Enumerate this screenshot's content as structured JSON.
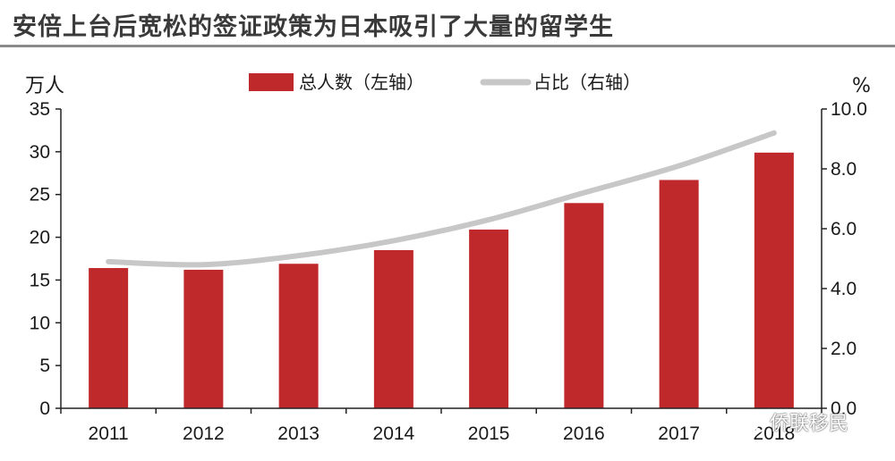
{
  "title": "安倍上台后宽松的签证政策为日本吸引了大量的留学生",
  "watermark": "侨联移民",
  "chart_data": {
    "type": "bar",
    "categories": [
      "2011",
      "2012",
      "2013",
      "2014",
      "2015",
      "2016",
      "2017",
      "2018"
    ],
    "series": [
      {
        "name": "总人数（左轴）",
        "type": "bar",
        "axis": "left",
        "color": "#c0292b",
        "values": [
          16.4,
          16.2,
          16.9,
          18.5,
          20.9,
          24.0,
          26.7,
          29.9
        ]
      },
      {
        "name": "占比（右轴）",
        "type": "line",
        "axis": "right",
        "color": "#c7c7c7",
        "values": [
          4.9,
          4.8,
          5.1,
          5.6,
          6.3,
          7.2,
          8.1,
          9.2
        ]
      }
    ],
    "left_axis": {
      "unit": "万人",
      "ylim": [
        0,
        35
      ],
      "ticks": [
        "0",
        "5",
        "10",
        "15",
        "20",
        "25",
        "30",
        "35"
      ]
    },
    "right_axis": {
      "unit": "%",
      "ylim": [
        0,
        10
      ],
      "ticks": [
        "0.0",
        "2.0",
        "4.0",
        "6.0",
        "8.0",
        "10.0"
      ]
    },
    "legend": "top-center",
    "grid": false
  }
}
